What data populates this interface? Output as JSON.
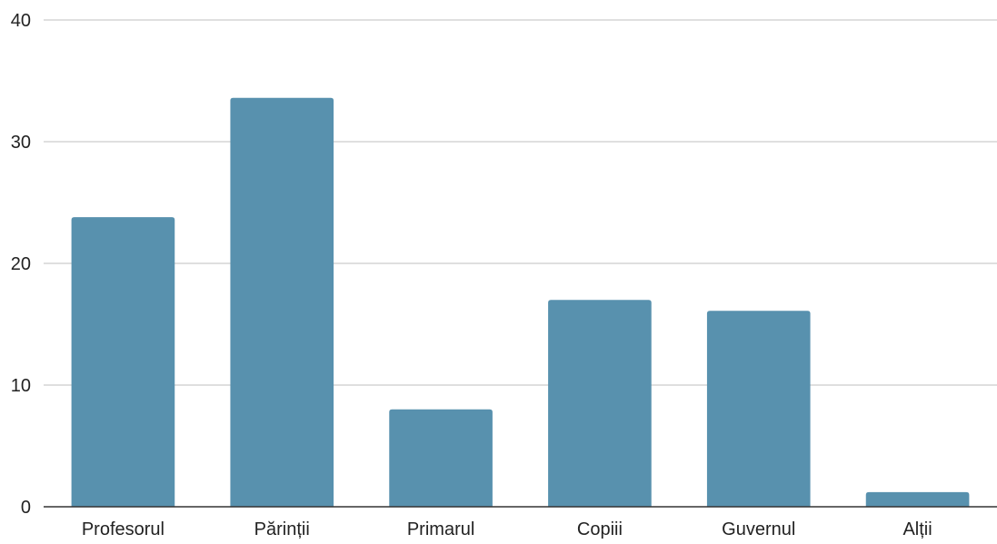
{
  "chart_data": {
    "type": "bar",
    "categories": [
      "Profesorul",
      "Părinții",
      "Primarul",
      "Copiii",
      "Guvernul",
      "Alții"
    ],
    "values": [
      23.8,
      33.6,
      8.0,
      17.0,
      16.1,
      1.2
    ],
    "ylim": [
      0,
      40
    ],
    "yticks": [
      0,
      10,
      20,
      30,
      40
    ],
    "grid": true,
    "bar_color": "#5891ae",
    "gridline_color": "#cccccc",
    "axis_color": "#333333"
  }
}
